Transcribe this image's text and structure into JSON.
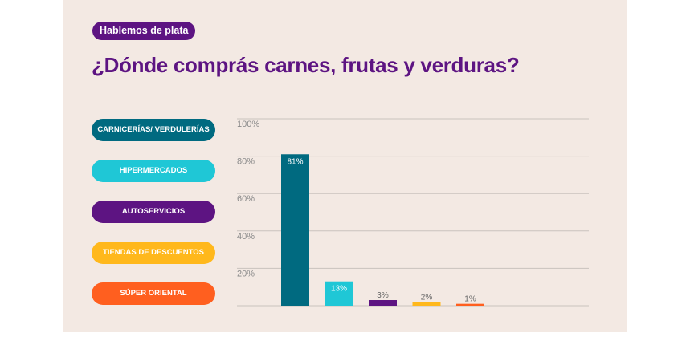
{
  "header": {
    "tag": "Hablemos de plata",
    "title": "¿Dónde comprás carnes, frutas y verduras?"
  },
  "colors": {
    "brand_purple": "#5d1482",
    "background": "#f3e9e3"
  },
  "chart_data": {
    "type": "bar",
    "title": "",
    "xlabel": "",
    "ylabel": "",
    "ylim": [
      0,
      100
    ],
    "yticks": [
      20,
      40,
      60,
      80,
      100
    ],
    "ytick_labels": [
      "20%",
      "40%",
      "60%",
      "80%",
      "100%"
    ],
    "grid": true,
    "legend": "left",
    "categories": [
      "CARNICERÍAS/ VERDULERÍAS",
      "HIPERMERCADOS",
      "AUTOSERVICIOS",
      "TIENDAS DE DESCUENTOS",
      "SÚPER ORIENTAL"
    ],
    "values": [
      81,
      13,
      3,
      2,
      1
    ],
    "data_labels": [
      "81%",
      "13%",
      "3%",
      "2%",
      "1%"
    ],
    "colors": [
      "#006a80",
      "#1fc7d6",
      "#5d1482",
      "#ffb81c",
      "#ff5f1f"
    ]
  }
}
